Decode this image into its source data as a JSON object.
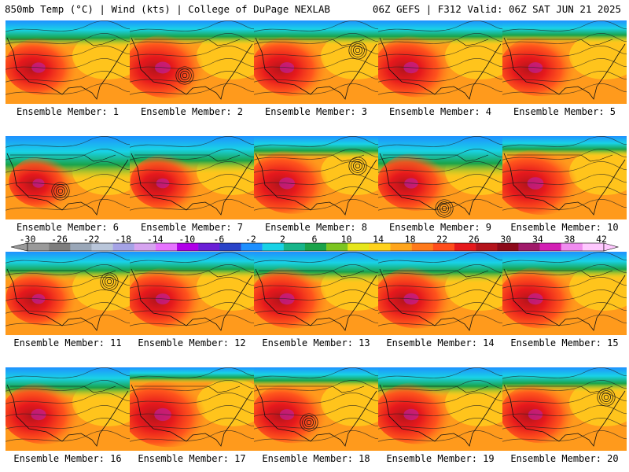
{
  "header": {
    "left": "850mb Temp (°C) | Wind (kts) | College of DuPage NEXLAB",
    "right": "06Z GEFS | F312 Valid: 06Z SAT JUN 21 2025"
  },
  "members": [
    {
      "label": "Ensemble Member: 1",
      "warm": 0.6,
      "cold": 0.35,
      "low": null
    },
    {
      "label": "Ensemble Member: 2",
      "warm": 0.75,
      "cold": 0.3,
      "low": "south"
    },
    {
      "label": "Ensemble Member: 3",
      "warm": 0.65,
      "cold": 0.3,
      "low": "east"
    },
    {
      "label": "Ensemble Member: 4",
      "warm": 0.7,
      "cold": 0.3,
      "low": null
    },
    {
      "label": "Ensemble Member: 5",
      "warm": 0.65,
      "cold": 0.25,
      "low": null
    },
    {
      "label": "Ensemble Member: 6",
      "warm": 0.45,
      "cold": 0.75,
      "low": "south"
    },
    {
      "label": "Ensemble Member: 7",
      "warm": 0.55,
      "cold": 0.6,
      "low": null
    },
    {
      "label": "Ensemble Member: 8",
      "warm": 0.75,
      "cold": 0.25,
      "low": "east"
    },
    {
      "label": "Ensemble Member: 9",
      "warm": 0.6,
      "cold": 0.7,
      "low": "gulf"
    },
    {
      "label": "Ensemble Member: 10",
      "warm": 0.8,
      "cold": 0.2,
      "low": null
    },
    {
      "label": "Ensemble Member: 11",
      "warm": 0.55,
      "cold": 0.4,
      "low": "east"
    },
    {
      "label": "Ensemble Member: 12",
      "warm": 0.65,
      "cold": 0.35,
      "low": null
    },
    {
      "label": "Ensemble Member: 13",
      "warm": 0.7,
      "cold": 0.45,
      "low": null
    },
    {
      "label": "Ensemble Member: 14",
      "warm": 0.7,
      "cold": 0.45,
      "low": null
    },
    {
      "label": "Ensemble Member: 15",
      "warm": 0.7,
      "cold": 0.35,
      "low": null
    },
    {
      "label": "Ensemble Member: 16",
      "warm": 0.7,
      "cold": 0.45,
      "low": null
    },
    {
      "label": "Ensemble Member: 17",
      "warm": 0.85,
      "cold": 0.1,
      "low": null
    },
    {
      "label": "Ensemble Member: 18",
      "warm": 0.65,
      "cold": 0.2,
      "low": "south"
    },
    {
      "label": "Ensemble Member: 19",
      "warm": 0.7,
      "cold": 0.4,
      "low": null
    },
    {
      "label": "Ensemble Member: 20",
      "warm": 0.65,
      "cold": 0.3,
      "low": "east"
    }
  ],
  "colorbar": {
    "tick_labels": [
      "-30",
      "-26",
      "-22",
      "-18",
      "-14",
      "-10",
      "-6",
      "-2",
      "2",
      "6",
      "10",
      "14",
      "18",
      "22",
      "26",
      "30",
      "34",
      "38",
      "42"
    ],
    "colors": [
      "#9a9a9a",
      "#7e7e7e",
      "#9aa7b8",
      "#b9c6da",
      "#a5a3e6",
      "#d6a4f0",
      "#e673ff",
      "#b000e8",
      "#6a1fd6",
      "#2a43c8",
      "#1e90ff",
      "#19d2e6",
      "#17b58a",
      "#1aa34a",
      "#7cc521",
      "#e6e61c",
      "#ffd21c",
      "#ffa51c",
      "#ff7a1c",
      "#ff4d1c",
      "#e6191c",
      "#b4141c",
      "#8c0a1a",
      "#a01a6a",
      "#d21fb4",
      "#f08cf0",
      "#ffc8ff"
    ],
    "colors_note_min": -30
  }
}
